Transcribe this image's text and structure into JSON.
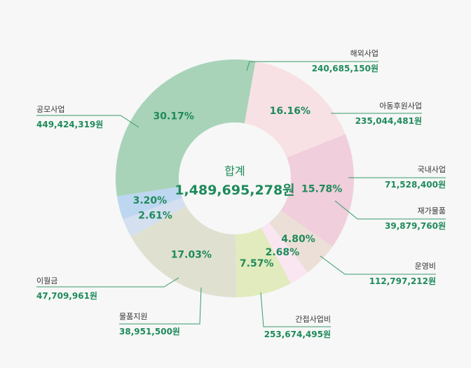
{
  "chart_data": {
    "type": "pie",
    "title": "",
    "center": {
      "title": "합계",
      "total": "1,489,695,278원"
    },
    "slices": [
      {
        "name": "해외사업",
        "value": "240,685,150원",
        "percent": 16.16,
        "label": "16.16%",
        "color": "#f8e1e5"
      },
      {
        "name": "아동후원사업",
        "value": "235,044,481원",
        "percent": 15.78,
        "label": "15.78%",
        "color": "#f0cedb"
      },
      {
        "name": "국내사업",
        "value": "71,528,400원",
        "percent": 4.8,
        "label": "4.80%",
        "color": "#ebdfd8"
      },
      {
        "name": "재가물품",
        "value": "39,879,760원",
        "percent": 2.68,
        "label": "2.68%",
        "color": "#f9e6f1"
      },
      {
        "name": "운영비",
        "value": "112,797,212원",
        "percent": 7.57,
        "label": "7.57%",
        "color": "#e1ebbd"
      },
      {
        "name": "간접사업비",
        "value": "253,674,495원",
        "percent": 17.03,
        "label": "17.03%",
        "color": "#dfe0cf"
      },
      {
        "name": "물품지원",
        "value": "38,951,500원",
        "percent": 2.61,
        "label": "2.61%",
        "color": "#d4dff0"
      },
      {
        "name": "이월금",
        "value": "47,709,961원",
        "percent": 3.2,
        "label": "3.20%",
        "color": "#bdd7f1"
      },
      {
        "name": "공모사업",
        "value": "449,424,319원",
        "percent": 30.17,
        "label": "30.17%",
        "color": "#a8d3b8"
      }
    ]
  }
}
